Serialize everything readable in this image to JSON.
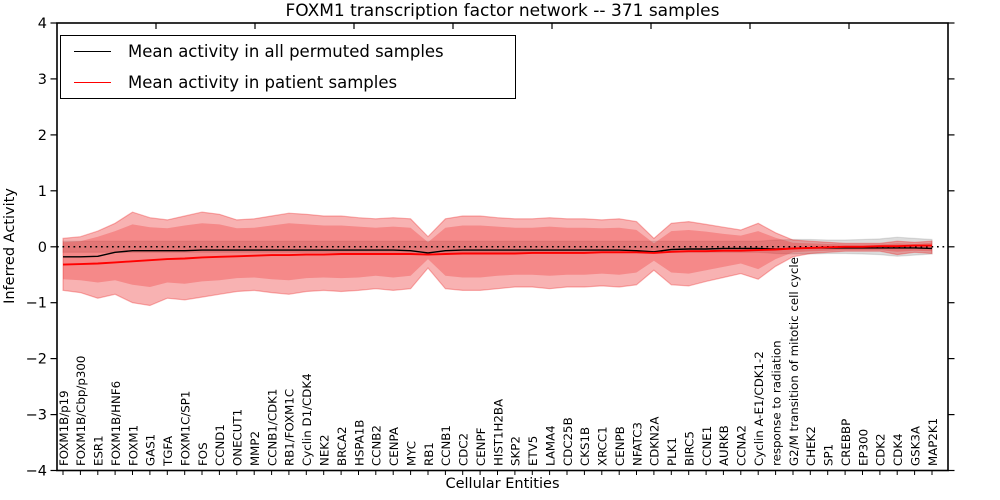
{
  "title": "FOXM1 transcription factor network -- 371 samples",
  "xlabel": "Cellular Entities",
  "ylabel": "Inferred Activity",
  "legend": {
    "entries": [
      {
        "label": "Mean activity in all permuted samples",
        "color": "#000000"
      },
      {
        "label": "Mean activity in patient samples",
        "color": "#ff0000"
      }
    ]
  },
  "chart_data": {
    "type": "line",
    "title": "FOXM1 transcription factor network -- 371 samples",
    "xlabel": "Cellular Entities",
    "ylabel": "Inferred Activity",
    "ylim": [
      -4,
      4
    ],
    "ytick_values": [
      4,
      3,
      2,
      1,
      0,
      -1,
      -2,
      -3,
      -4
    ],
    "ytick_labels": [
      "4",
      "3",
      "2",
      "1",
      "0",
      "−1",
      "−2",
      "−3",
      "−4"
    ],
    "zero_line": true,
    "legend_position": "upper left",
    "grid": false,
    "categories": [
      "FOXM1B/p19",
      "FOXM1B/Cbp/p300",
      "ESR1",
      "FOXM1B/HNF6",
      "FOXM1",
      "GAS1",
      "TGFA",
      "FOXM1C/SP1",
      "FOS",
      "CCND1",
      "ONECUT1",
      "MMP2",
      "CCNB1/CDK1",
      "RB1/FOXM1C",
      "Cyclin D1/CDK4",
      "NEK2",
      "BRCA2",
      "HSPA1B",
      "CCNB2",
      "CENPA",
      "MYC",
      "RB1",
      "CCNB1",
      "CDC2",
      "CENPF",
      "HIST1H2BA",
      "SKP2",
      "ETV5",
      "LAMA4",
      "CDC25B",
      "CKS1B",
      "XRCC1",
      "CENPB",
      "NFATC3",
      "CDKN2A",
      "PLK1",
      "BIRC5",
      "CCNE1",
      "AURKB",
      "CCNA2",
      "Cyclin A-E1/CDK1-2",
      "response to radiation",
      "G2/M transition of mitotic cell cycle",
      "CHEK2",
      "SP1",
      "CREBBP",
      "EP300",
      "CDK2",
      "CDK4",
      "GSK3A",
      "MAP2K1"
    ],
    "series": [
      {
        "name": "Mean activity in all permuted samples",
        "color": "#000000",
        "values": [
          -0.18,
          -0.18,
          -0.17,
          -0.1,
          -0.07,
          -0.07,
          -0.07,
          -0.07,
          -0.06,
          -0.06,
          -0.06,
          -0.06,
          -0.06,
          -0.06,
          -0.06,
          -0.06,
          -0.06,
          -0.06,
          -0.06,
          -0.06,
          -0.07,
          -0.11,
          -0.07,
          -0.06,
          -0.06,
          -0.06,
          -0.06,
          -0.06,
          -0.06,
          -0.06,
          -0.06,
          -0.06,
          -0.06,
          -0.07,
          -0.09,
          -0.05,
          -0.04,
          -0.04,
          -0.03,
          -0.03,
          -0.03,
          -0.04,
          -0.03,
          -0.02,
          -0.02,
          -0.02,
          -0.02,
          -0.02,
          -0.02,
          -0.02,
          -0.03
        ]
      },
      {
        "name": "Mean activity in patient samples",
        "color": "#ff0000",
        "values": [
          -0.32,
          -0.31,
          -0.3,
          -0.28,
          -0.26,
          -0.24,
          -0.22,
          -0.21,
          -0.19,
          -0.18,
          -0.17,
          -0.16,
          -0.15,
          -0.15,
          -0.14,
          -0.14,
          -0.13,
          -0.13,
          -0.13,
          -0.13,
          -0.13,
          -0.14,
          -0.13,
          -0.12,
          -0.12,
          -0.12,
          -0.12,
          -0.11,
          -0.11,
          -0.11,
          -0.11,
          -0.1,
          -0.1,
          -0.1,
          -0.11,
          -0.09,
          -0.08,
          -0.08,
          -0.07,
          -0.07,
          -0.06,
          -0.05,
          -0.03,
          -0.02,
          -0.01,
          0.0,
          0.0,
          0.01,
          0.01,
          0.02,
          0.02
        ]
      }
    ],
    "bands": [
      {
        "name": "permuted samples range",
        "color_rgba": "rgba(60,60,60,0.18)",
        "edge_rgba": "rgba(0,0,0,0.10)",
        "top": [
          0.1,
          0.1,
          0.1,
          0.1,
          0.1,
          0.1,
          0.1,
          0.1,
          0.1,
          0.1,
          0.1,
          0.1,
          0.1,
          0.1,
          0.1,
          0.1,
          0.1,
          0.1,
          0.1,
          0.1,
          0.1,
          0.1,
          0.1,
          0.1,
          0.1,
          0.1,
          0.1,
          0.1,
          0.1,
          0.1,
          0.1,
          0.1,
          0.1,
          0.1,
          0.1,
          0.1,
          0.1,
          0.1,
          0.1,
          0.1,
          0.1,
          0.12,
          0.13,
          0.13,
          0.12,
          0.12,
          0.13,
          0.14,
          0.17,
          0.15,
          0.13
        ],
        "bottom": [
          -0.1,
          -0.1,
          -0.1,
          -0.1,
          -0.1,
          -0.1,
          -0.1,
          -0.1,
          -0.1,
          -0.1,
          -0.1,
          -0.1,
          -0.1,
          -0.1,
          -0.1,
          -0.1,
          -0.1,
          -0.1,
          -0.1,
          -0.1,
          -0.1,
          -0.1,
          -0.1,
          -0.1,
          -0.1,
          -0.1,
          -0.1,
          -0.1,
          -0.1,
          -0.1,
          -0.1,
          -0.1,
          -0.1,
          -0.1,
          -0.1,
          -0.1,
          -0.1,
          -0.1,
          -0.1,
          -0.1,
          -0.1,
          -0.12,
          -0.13,
          -0.13,
          -0.12,
          -0.12,
          -0.13,
          -0.14,
          -0.17,
          -0.15,
          -0.13
        ]
      },
      {
        "name": "patient samples outer range",
        "color_rgba": "rgba(235,20,20,0.33)",
        "edge_rgba": "rgba(235,20,20,0.30)",
        "top": [
          0.15,
          0.18,
          0.28,
          0.42,
          0.62,
          0.52,
          0.48,
          0.55,
          0.62,
          0.58,
          0.48,
          0.5,
          0.55,
          0.6,
          0.58,
          0.55,
          0.55,
          0.52,
          0.5,
          0.52,
          0.5,
          0.18,
          0.5,
          0.55,
          0.55,
          0.52,
          0.5,
          0.5,
          0.52,
          0.5,
          0.5,
          0.48,
          0.5,
          0.45,
          0.15,
          0.42,
          0.45,
          0.4,
          0.35,
          0.3,
          0.42,
          0.25,
          0.12,
          0.1,
          0.08,
          0.06,
          0.06,
          0.06,
          0.1,
          0.08,
          0.1
        ],
        "bottom": [
          -0.78,
          -0.82,
          -0.92,
          -0.85,
          -1.0,
          -1.05,
          -0.92,
          -0.95,
          -0.9,
          -0.85,
          -0.8,
          -0.78,
          -0.82,
          -0.85,
          -0.8,
          -0.78,
          -0.8,
          -0.78,
          -0.75,
          -0.78,
          -0.75,
          -0.38,
          -0.75,
          -0.78,
          -0.78,
          -0.75,
          -0.72,
          -0.72,
          -0.75,
          -0.72,
          -0.72,
          -0.7,
          -0.72,
          -0.68,
          -0.42,
          -0.68,
          -0.7,
          -0.62,
          -0.55,
          -0.48,
          -0.58,
          -0.35,
          -0.18,
          -0.12,
          -0.1,
          -0.08,
          -0.08,
          -0.08,
          -0.14,
          -0.1,
          -0.12
        ]
      },
      {
        "name": "patient samples inner range",
        "color_rgba": "rgba(235,20,20,0.26)",
        "edge_rgba": "none",
        "top": [
          0.08,
          0.1,
          0.18,
          0.28,
          0.4,
          0.35,
          0.33,
          0.38,
          0.42,
          0.4,
          0.33,
          0.34,
          0.38,
          0.42,
          0.4,
          0.38,
          0.38,
          0.36,
          0.34,
          0.36,
          0.34,
          0.08,
          0.34,
          0.38,
          0.38,
          0.36,
          0.34,
          0.34,
          0.36,
          0.34,
          0.34,
          0.33,
          0.34,
          0.3,
          0.06,
          0.28,
          0.3,
          0.27,
          0.23,
          0.2,
          0.28,
          0.16,
          0.07,
          0.06,
          0.05,
          0.04,
          0.04,
          0.04,
          0.06,
          0.05,
          0.07
        ],
        "bottom": [
          -0.58,
          -0.6,
          -0.64,
          -0.6,
          -0.68,
          -0.72,
          -0.64,
          -0.66,
          -0.62,
          -0.6,
          -0.56,
          -0.55,
          -0.58,
          -0.6,
          -0.56,
          -0.55,
          -0.56,
          -0.55,
          -0.52,
          -0.55,
          -0.52,
          -0.22,
          -0.52,
          -0.55,
          -0.55,
          -0.52,
          -0.5,
          -0.5,
          -0.52,
          -0.5,
          -0.5,
          -0.48,
          -0.5,
          -0.46,
          -0.25,
          -0.46,
          -0.48,
          -0.42,
          -0.36,
          -0.3,
          -0.4,
          -0.22,
          -0.1,
          -0.08,
          -0.07,
          -0.06,
          -0.06,
          -0.06,
          -0.09,
          -0.07,
          -0.08
        ]
      }
    ]
  }
}
